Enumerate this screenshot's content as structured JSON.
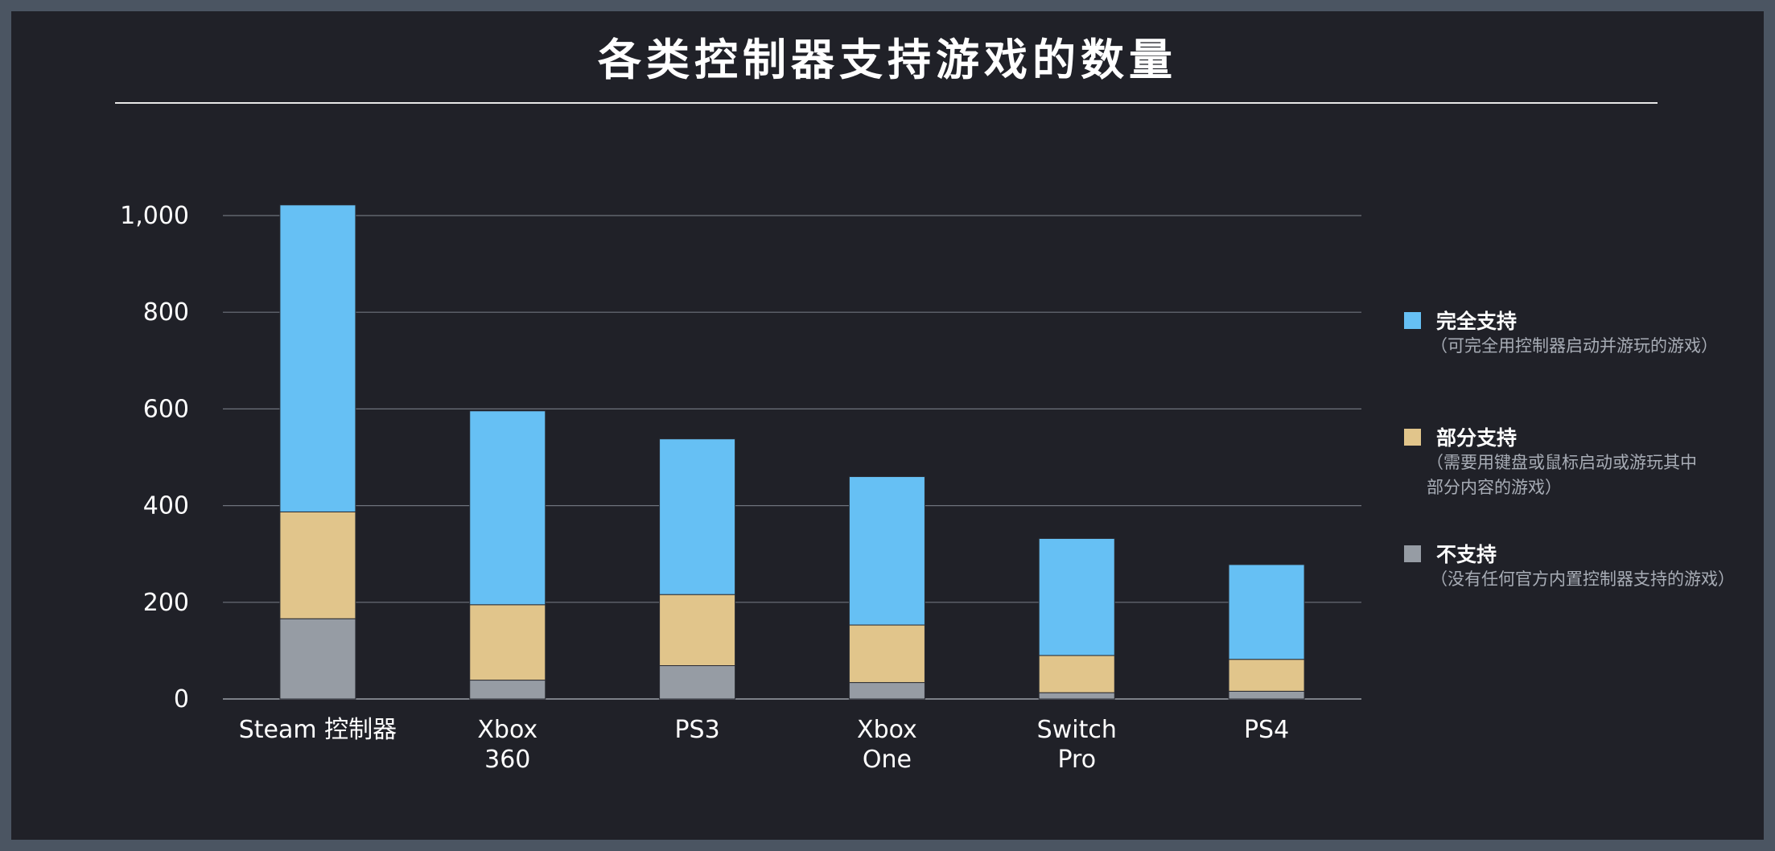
{
  "chart_data": {
    "type": "bar",
    "stacked": true,
    "title": "各类控制器支持游戏的数量",
    "categories": [
      "Steam 控制器",
      "Xbox 360",
      "PS3",
      "Xbox One",
      "Switch Pro",
      "PS4"
    ],
    "category_lines": [
      [
        "Steam 控制器"
      ],
      [
        "Xbox",
        "360"
      ],
      [
        "PS3"
      ],
      [
        "Xbox",
        "One"
      ],
      [
        "Switch",
        "Pro"
      ],
      [
        "PS4"
      ]
    ],
    "series": [
      {
        "name": "不支持",
        "color": "#969ca4",
        "values": [
          166,
          39,
          69,
          34,
          13,
          16
        ]
      },
      {
        "name": "部分支持",
        "color": "#e1c58b",
        "values": [
          221,
          156,
          147,
          119,
          77,
          66
        ]
      },
      {
        "name": "完全支持",
        "color": "#66c0f4",
        "values": [
          635,
          401,
          322,
          307,
          242,
          196
        ]
      }
    ],
    "ylim": [
      0,
      1000
    ],
    "yticks": [
      0,
      200,
      400,
      600,
      800,
      1000
    ],
    "ytick_labels": [
      "0",
      "200",
      "400",
      "600",
      "800",
      "1,000"
    ],
    "grid": true,
    "legend_position": "right"
  },
  "legend": [
    {
      "name": "完全支持",
      "desc": "（可完全用控制器启动并游玩的游戏）",
      "color": "#66c0f4"
    },
    {
      "name": "部分支持",
      "desc": "（需要用键盘或鼠标启动或游玩其中部分内容的游戏）",
      "color": "#e1c58b"
    },
    {
      "name": "不支持",
      "desc": "（没有任何官方内置控制器支持的游戏）",
      "color": "#969ca4"
    }
  ]
}
